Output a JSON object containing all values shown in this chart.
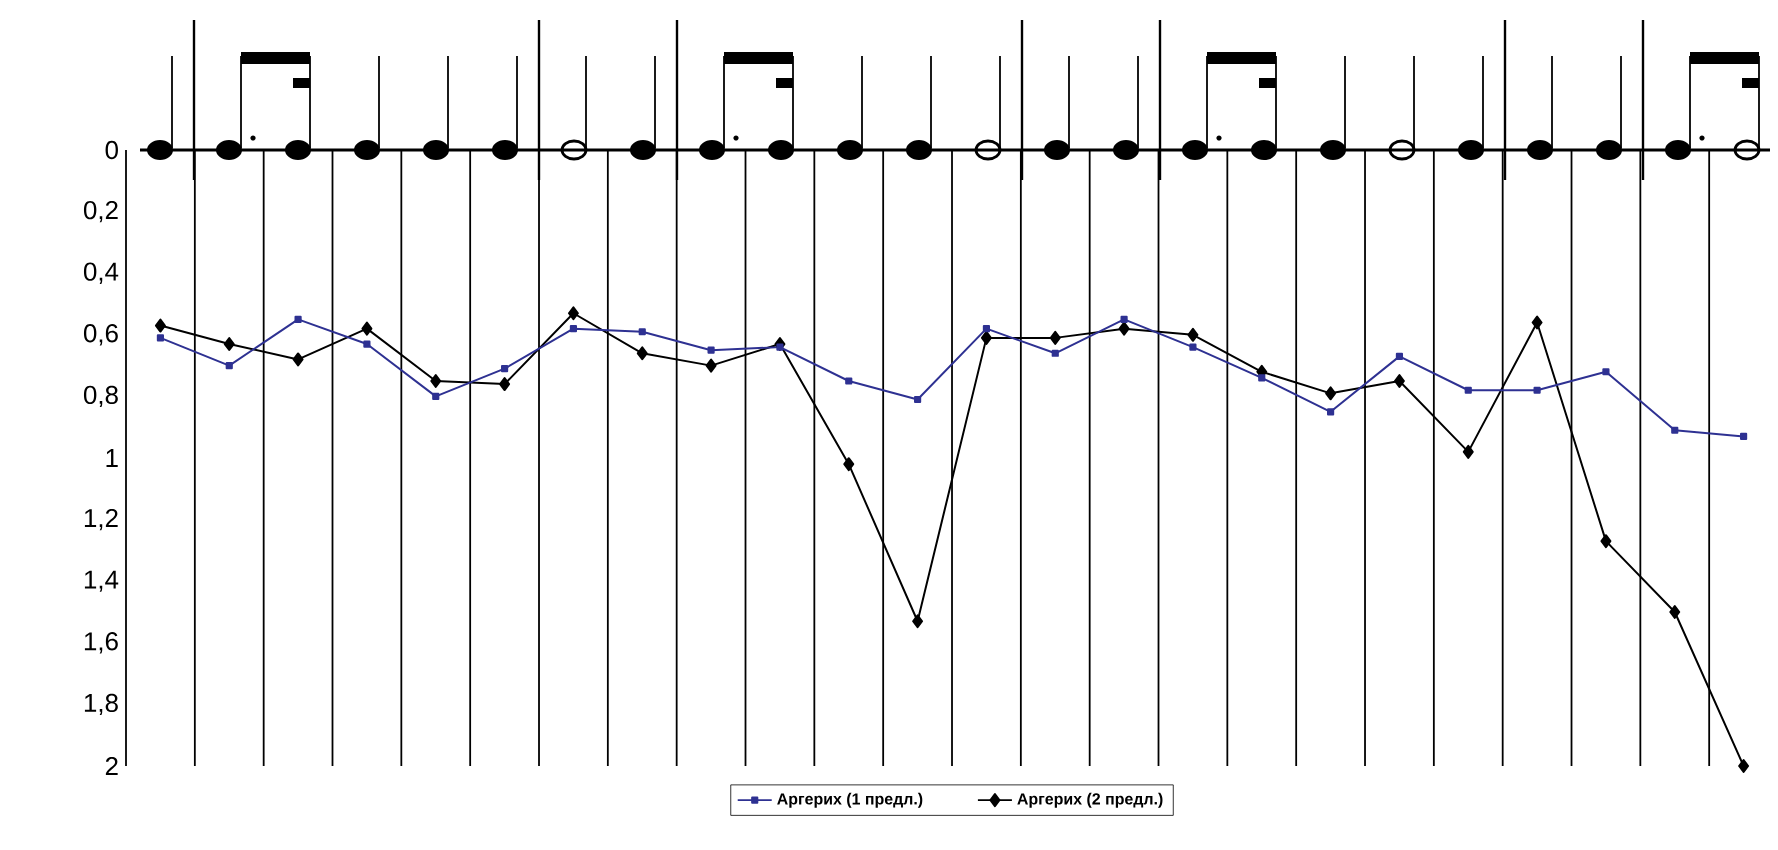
{
  "chart_data": {
    "type": "line",
    "categories": [
      null,
      null,
      null,
      null,
      null,
      null,
      null,
      null,
      null,
      null,
      null,
      null,
      null,
      null,
      null,
      null,
      null,
      null,
      null,
      null,
      null,
      null,
      null,
      null
    ],
    "series": [
      {
        "name": "Аргерих (1 предл.)",
        "color": "#2e3192",
        "marker": "square",
        "values": [
          0.61,
          0.7,
          0.55,
          0.63,
          0.8,
          0.71,
          0.58,
          0.59,
          0.65,
          0.64,
          0.75,
          0.81,
          0.58,
          0.66,
          0.55,
          0.64,
          0.74,
          0.85,
          0.67,
          0.78,
          0.78,
          0.72,
          0.91,
          0.93
        ]
      },
      {
        "name": "Аргерих (2 предл.)",
        "color": "#000000",
        "marker": "diamond",
        "values": [
          0.57,
          0.63,
          0.68,
          0.58,
          0.75,
          0.76,
          0.53,
          0.66,
          0.7,
          0.63,
          1.02,
          1.53,
          0.61,
          0.61,
          0.58,
          0.6,
          0.72,
          0.79,
          0.75,
          0.98,
          0.56,
          1.27,
          1.5,
          2.0
        ]
      }
    ],
    "ylim": [
      2,
      0
    ],
    "yticks": [
      0,
      {
        "value": 0.2,
        "label": "0,2"
      },
      {
        "value": 0.4,
        "label": "0,4"
      },
      {
        "value": 0.6,
        "label": "0,6"
      },
      {
        "value": 0.8,
        "label": "0,8"
      },
      1,
      {
        "value": 1.2,
        "label": "1,2"
      },
      {
        "value": 1.4,
        "label": "1,4"
      },
      {
        "value": 1.6,
        "label": "1,6"
      },
      {
        "value": 1.8,
        "label": "1,8"
      },
      2
    ],
    "grid": "x",
    "tick_labels": "y",
    "legend": "bottom"
  }
}
